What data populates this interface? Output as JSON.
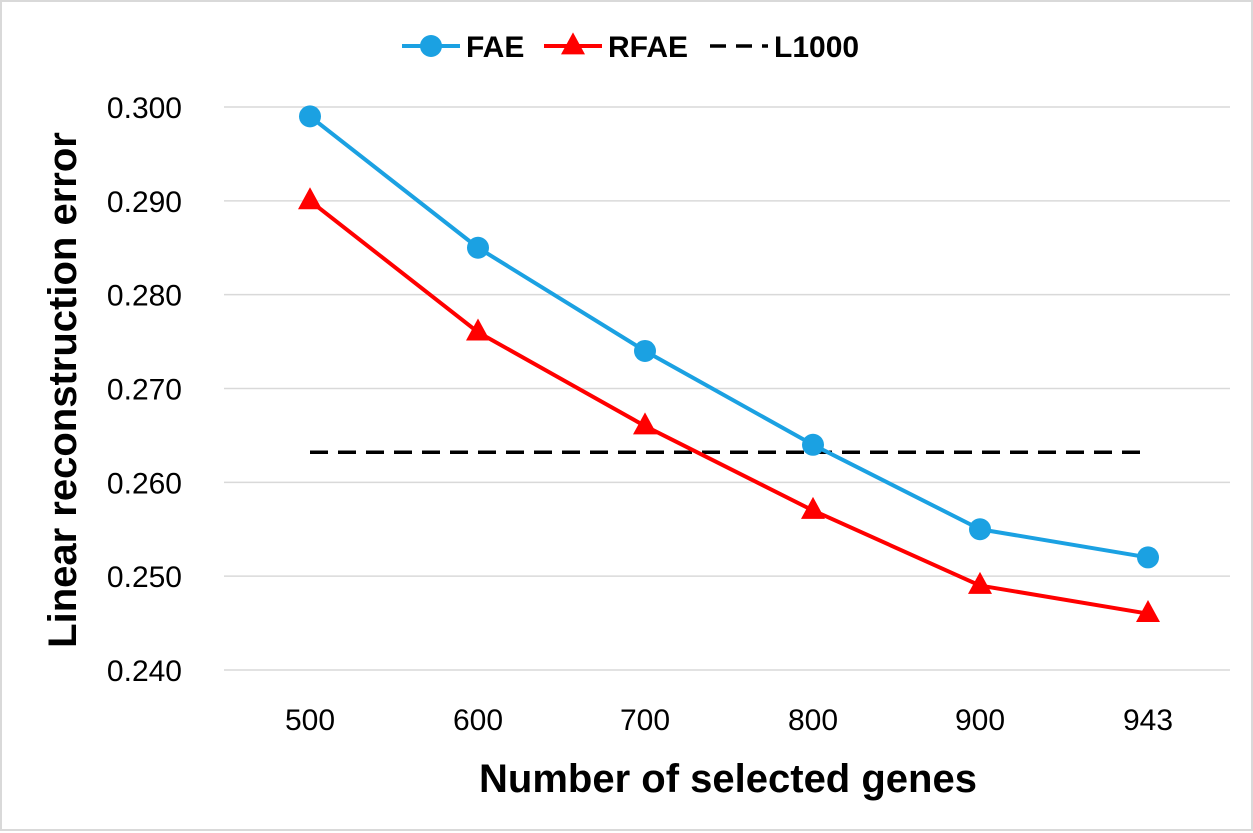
{
  "chart_data": {
    "type": "line",
    "title": "",
    "xlabel": "Number of selected genes",
    "ylabel": "Linear reconstruction error",
    "categories": [
      "500",
      "600",
      "700",
      "800",
      "900",
      "943"
    ],
    "y_ticks": [
      "0.240",
      "0.250",
      "0.260",
      "0.270",
      "0.280",
      "0.290",
      "0.300"
    ],
    "ylim": [
      0.24,
      0.3
    ],
    "grid": "horizontal",
    "legend_position": "top",
    "series": [
      {
        "name": "FAE",
        "values": [
          0.299,
          0.285,
          0.274,
          0.264,
          0.255,
          0.252
        ],
        "color": "#1BA1E2",
        "marker": "circle",
        "line": "solid"
      },
      {
        "name": "RFAE",
        "values": [
          0.29,
          0.276,
          0.266,
          0.257,
          0.249,
          0.246
        ],
        "color": "#FF0000",
        "marker": "triangle",
        "line": "solid"
      },
      {
        "name": "L1000",
        "values": [
          0.2632,
          0.2632,
          0.2632,
          0.2632,
          0.2632,
          0.2632
        ],
        "color": "#000000",
        "marker": "none",
        "line": "dashed"
      }
    ]
  }
}
